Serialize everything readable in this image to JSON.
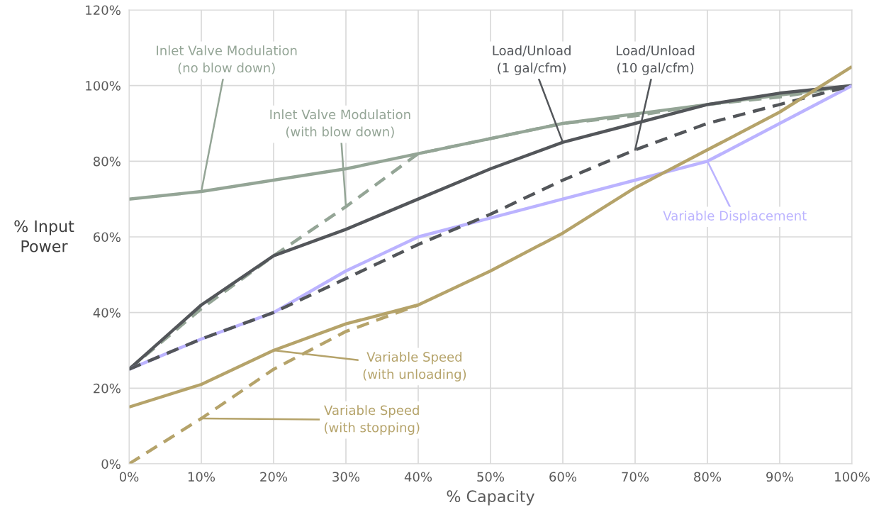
{
  "chart_data": {
    "type": "line",
    "xlabel": "% Capacity",
    "ylabel": "% Input Power",
    "x": [
      0,
      10,
      20,
      30,
      40,
      50,
      60,
      70,
      80,
      90,
      100
    ],
    "xlim": [
      0,
      100
    ],
    "ylim": [
      0,
      120
    ],
    "xticks": [
      {
        "value": 0,
        "label": "0%"
      },
      {
        "value": 10,
        "label": "10%"
      },
      {
        "value": 20,
        "label": "20%"
      },
      {
        "value": 30,
        "label": "30%"
      },
      {
        "value": 40,
        "label": "40%"
      },
      {
        "value": 50,
        "label": "50%"
      },
      {
        "value": 60,
        "label": "60%"
      },
      {
        "value": 70,
        "label": "70%"
      },
      {
        "value": 80,
        "label": "80%"
      },
      {
        "value": 90,
        "label": "90%"
      },
      {
        "value": 100,
        "label": "100%"
      }
    ],
    "yticks": [
      {
        "value": 0,
        "label": "0%"
      },
      {
        "value": 20,
        "label": "20%"
      },
      {
        "value": 40,
        "label": "40%"
      },
      {
        "value": 60,
        "label": "60%"
      },
      {
        "value": 80,
        "label": "80%"
      },
      {
        "value": 100,
        "label": "100%"
      },
      {
        "value": 120,
        "label": "120%"
      }
    ],
    "grid": true,
    "marker": "none",
    "series": [
      {
        "color": "#94a596",
        "line_style": "solid",
        "values": [
          70,
          72,
          75,
          78,
          82,
          86,
          90,
          92.5,
          95,
          97.5,
          100
        ]
      },
      {
        "color": "#94a596",
        "line_style": "dashed",
        "values": [
          25,
          41,
          55,
          68,
          82,
          86,
          90,
          92,
          95,
          97,
          100
        ]
      },
      {
        "color": "#53565a",
        "line_style": "solid",
        "values": [
          25,
          42,
          55,
          62,
          70,
          78,
          85,
          90,
          95,
          98,
          100
        ]
      },
      {
        "color": "#bbb3ff",
        "line_style": "solid",
        "values": [
          25,
          33,
          40,
          51,
          60,
          65,
          70,
          75,
          80,
          90,
          100
        ]
      },
      {
        "color": "#53565a",
        "line_style": "dashed",
        "values": [
          25,
          33,
          40,
          49,
          58,
          66,
          75,
          83,
          90,
          95,
          100
        ]
      },
      {
        "color": "#b5a36a",
        "line_style": "solid",
        "values": [
          15,
          21,
          30,
          37,
          42,
          51,
          61,
          73,
          83,
          93,
          105
        ]
      },
      {
        "color": "#b5a36a",
        "line_style": "dashed",
        "values": [
          0,
          12,
          25,
          35,
          42,
          null,
          null,
          null,
          null,
          null,
          null
        ]
      }
    ],
    "annotations": [
      {
        "text": "Inlet Valve Modulation\n(no blow down)",
        "x": 10,
        "y": 72
      },
      {
        "text": "Inlet Valve Modulation\n(with blow down)",
        "x": 30,
        "y": 68
      },
      {
        "text": "Load/Unload\n(1 gal/cfm)",
        "x": 60,
        "y": 85
      },
      {
        "text": "Load/Unload\n(10 gal/cfm)",
        "x": 70,
        "y": 83
      },
      {
        "text": "Variable Displacement",
        "x": 80,
        "y": 80
      },
      {
        "text": "Variable Speed\n(with unloading)",
        "x": 20,
        "y": 30
      },
      {
        "text": "Variable Speed\n(with stopping)",
        "x": 10,
        "y": 12
      }
    ]
  }
}
